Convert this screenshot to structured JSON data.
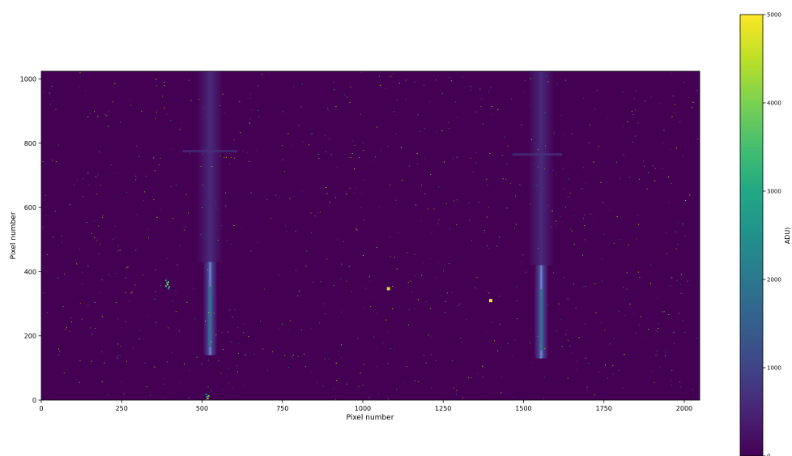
{
  "chart_data": {
    "type": "heatmap",
    "title": "",
    "xlabel": "Pixel number",
    "ylabel": "Pixel number",
    "xlim": [
      0,
      2048
    ],
    "ylim": [
      0,
      1024
    ],
    "xticks": [
      0,
      250,
      500,
      750,
      1000,
      1250,
      1500,
      1750,
      2000
    ],
    "yticks": [
      0,
      200,
      400,
      600,
      800,
      1000
    ],
    "colorbar": {
      "label": "ADU)",
      "range": [
        0,
        5000
      ],
      "ticks": [
        0,
        1000,
        2000,
        3000,
        4000,
        5000
      ],
      "colormap": "viridis"
    },
    "background_level": 0,
    "features": [
      {
        "kind": "vertical-trace",
        "x": 525,
        "y_bright": [
          140,
          430
        ],
        "y_faint": [
          430,
          1024
        ],
        "peak": 1700
      },
      {
        "kind": "vertical-trace",
        "x": 1555,
        "y_bright": [
          130,
          420
        ],
        "y_faint": [
          420,
          1024
        ],
        "peak": 1700
      },
      {
        "kind": "horizontal-streak",
        "x": [
          440,
          610
        ],
        "y": 775,
        "level": 700
      },
      {
        "kind": "horizontal-streak",
        "x": [
          1465,
          1620
        ],
        "y": 765,
        "level": 700
      },
      {
        "kind": "hot-spot",
        "x": 1398,
        "y": 310,
        "level": 5000
      },
      {
        "kind": "hot-spot",
        "x": 1080,
        "y": 347,
        "level": 4600
      },
      {
        "kind": "hot-cluster",
        "x": 393,
        "y": 360,
        "level": 4200
      },
      {
        "kind": "hot-cluster",
        "x": 518,
        "y": 5,
        "level": 4200
      }
    ]
  },
  "colors": {
    "viridis_min": "#440154",
    "viridis_mid": "#21918c",
    "viridis_max": "#fde725",
    "background": "#440154"
  }
}
